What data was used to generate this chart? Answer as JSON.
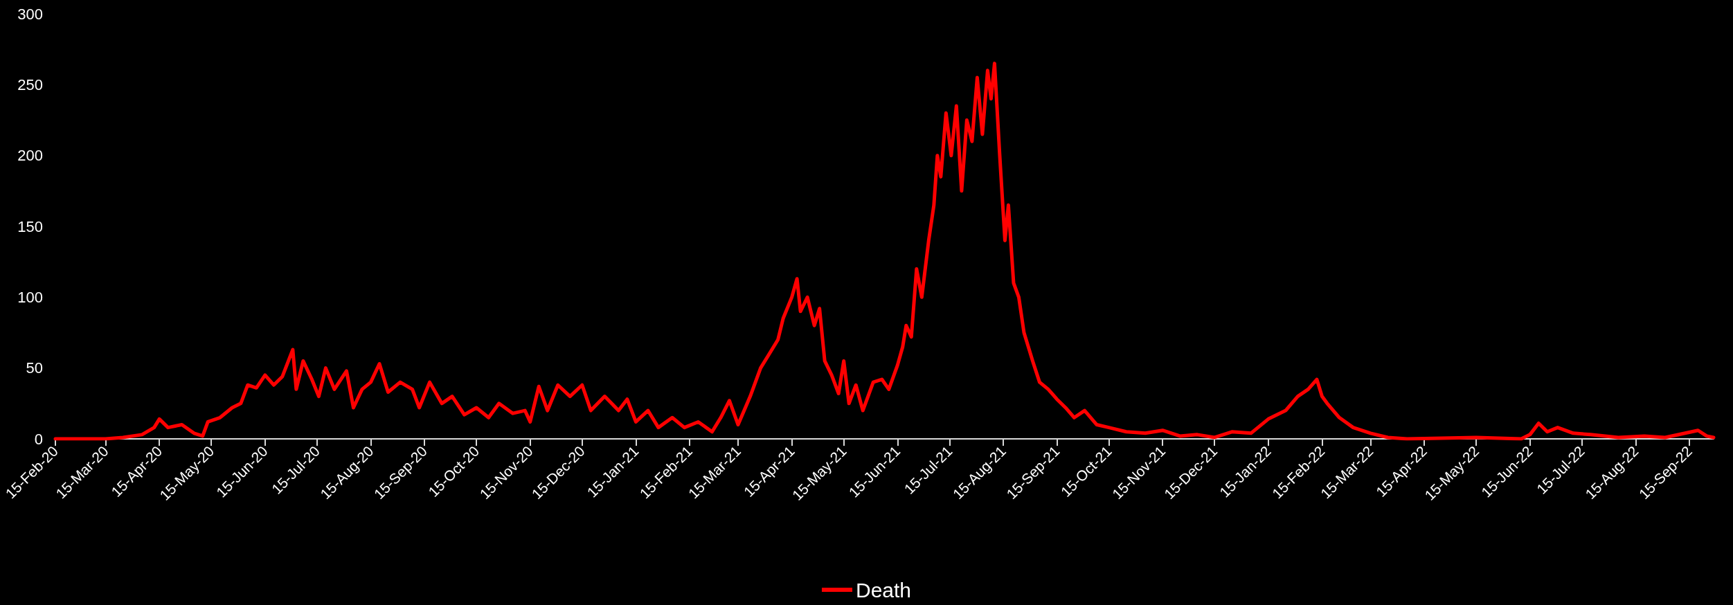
{
  "chart_data": {
    "type": "line",
    "legend": "bottom",
    "grid": false,
    "marker": "none",
    "line_style": "solid",
    "xlim": [
      "2020-02-15",
      "2022-09-29"
    ],
    "xticks": [
      {
        "value": "2020-02-15",
        "label": "15-Feb-20"
      },
      {
        "value": "2020-03-15",
        "label": "15-Mar-20"
      },
      {
        "value": "2020-04-15",
        "label": "15-Apr-20"
      },
      {
        "value": "2020-05-15",
        "label": "15-May-20"
      },
      {
        "value": "2020-06-15",
        "label": "15-Jun-20"
      },
      {
        "value": "2020-07-15",
        "label": "15-Jul-20"
      },
      {
        "value": "2020-08-15",
        "label": "15-Aug-20"
      },
      {
        "value": "2020-09-15",
        "label": "15-Sep-20"
      },
      {
        "value": "2020-10-15",
        "label": "15-Oct-20"
      },
      {
        "value": "2020-11-15",
        "label": "15-Nov-20"
      },
      {
        "value": "2020-12-15",
        "label": "15-Dec-20"
      },
      {
        "value": "2021-01-15",
        "label": "15-Jan-21"
      },
      {
        "value": "2021-02-15",
        "label": "15-Feb-21"
      },
      {
        "value": "2021-03-15",
        "label": "15-Mar-21"
      },
      {
        "value": "2021-04-15",
        "label": "15-Apr-21"
      },
      {
        "value": "2021-05-15",
        "label": "15-May-21"
      },
      {
        "value": "2021-06-15",
        "label": "15-Jun-21"
      },
      {
        "value": "2021-07-15",
        "label": "15-Jul-21"
      },
      {
        "value": "2021-08-15",
        "label": "15-Aug-21"
      },
      {
        "value": "2021-09-15",
        "label": "15-Sep-21"
      },
      {
        "value": "2021-10-15",
        "label": "15-Oct-21"
      },
      {
        "value": "2021-11-15",
        "label": "15-Nov-21"
      },
      {
        "value": "2021-12-15",
        "label": "15-Dec-21"
      },
      {
        "value": "2022-01-15",
        "label": "15-Jan-22"
      },
      {
        "value": "2022-02-15",
        "label": "15-Feb-22"
      },
      {
        "value": "2022-03-15",
        "label": "15-Mar-22"
      },
      {
        "value": "2022-04-15",
        "label": "15-Apr-22"
      },
      {
        "value": "2022-05-15",
        "label": "15-May-22"
      },
      {
        "value": "2022-06-15",
        "label": "15-Jun-22"
      },
      {
        "value": "2022-07-15",
        "label": "15-Jul-22"
      },
      {
        "value": "2022-08-15",
        "label": "15-Aug-22"
      },
      {
        "value": "2022-09-15",
        "label": "15-Sep-22"
      }
    ],
    "ylim": [
      0,
      300
    ],
    "yticks": [
      0,
      50,
      100,
      150,
      200,
      250,
      300
    ],
    "x": [
      "2020-02-15",
      "2020-03-15",
      "2020-03-25",
      "2020-04-05",
      "2020-04-12",
      "2020-04-15",
      "2020-04-20",
      "2020-04-28",
      "2020-05-05",
      "2020-05-10",
      "2020-05-13",
      "2020-05-20",
      "2020-05-27",
      "2020-06-01",
      "2020-06-05",
      "2020-06-10",
      "2020-06-15",
      "2020-06-20",
      "2020-06-25",
      "2020-07-01",
      "2020-07-03",
      "2020-07-07",
      "2020-07-12",
      "2020-07-16",
      "2020-07-20",
      "2020-07-25",
      "2020-08-01",
      "2020-08-05",
      "2020-08-10",
      "2020-08-15",
      "2020-08-20",
      "2020-08-25",
      "2020-09-01",
      "2020-09-08",
      "2020-09-12",
      "2020-09-18",
      "2020-09-25",
      "2020-10-01",
      "2020-10-08",
      "2020-10-15",
      "2020-10-22",
      "2020-10-28",
      "2020-11-05",
      "2020-11-12",
      "2020-11-15",
      "2020-11-20",
      "2020-11-25",
      "2020-12-01",
      "2020-12-08",
      "2020-12-15",
      "2020-12-20",
      "2020-12-28",
      "2021-01-05",
      "2021-01-10",
      "2021-01-15",
      "2021-01-22",
      "2021-01-28",
      "2021-02-05",
      "2021-02-12",
      "2021-02-20",
      "2021-02-28",
      "2021-03-05",
      "2021-03-10",
      "2021-03-15",
      "2021-03-22",
      "2021-03-28",
      "2021-04-02",
      "2021-04-07",
      "2021-04-10",
      "2021-04-15",
      "2021-04-18",
      "2021-04-20",
      "2021-04-24",
      "2021-04-28",
      "2021-05-01",
      "2021-05-04",
      "2021-05-08",
      "2021-05-12",
      "2021-05-15",
      "2021-05-18",
      "2021-05-22",
      "2021-05-26",
      "2021-06-01",
      "2021-06-06",
      "2021-06-10",
      "2021-06-15",
      "2021-06-18",
      "2021-06-20",
      "2021-06-23",
      "2021-06-26",
      "2021-06-29",
      "2021-07-03",
      "2021-07-06",
      "2021-07-08",
      "2021-07-10",
      "2021-07-13",
      "2021-07-16",
      "2021-07-19",
      "2021-07-22",
      "2021-07-25",
      "2021-07-28",
      "2021-07-31",
      "2021-08-03",
      "2021-08-06",
      "2021-08-08",
      "2021-08-10",
      "2021-08-13",
      "2021-08-16",
      "2021-08-18",
      "2021-08-21",
      "2021-08-24",
      "2021-08-27",
      "2021-09-01",
      "2021-09-05",
      "2021-09-10",
      "2021-09-15",
      "2021-09-20",
      "2021-09-25",
      "2021-10-01",
      "2021-10-08",
      "2021-10-15",
      "2021-10-25",
      "2021-11-05",
      "2021-11-15",
      "2021-11-25",
      "2021-12-05",
      "2021-12-15",
      "2021-12-25",
      "2022-01-05",
      "2022-01-15",
      "2022-01-25",
      "2022-02-01",
      "2022-02-07",
      "2022-02-12",
      "2022-02-15",
      "2022-02-18",
      "2022-02-25",
      "2022-03-05",
      "2022-03-15",
      "2022-03-25",
      "2022-04-05",
      "2022-05-15",
      "2022-06-10",
      "2022-06-15",
      "2022-06-20",
      "2022-06-25",
      "2022-07-01",
      "2022-07-10",
      "2022-07-20",
      "2022-08-05",
      "2022-08-20",
      "2022-09-01",
      "2022-09-20",
      "2022-09-25",
      "2022-09-29"
    ],
    "series": [
      {
        "name": "Death",
        "color": "#ff0000",
        "values": [
          0,
          0,
          1,
          3,
          8,
          14,
          8,
          10,
          4,
          2,
          12,
          15,
          22,
          25,
          38,
          36,
          45,
          38,
          44,
          63,
          35,
          55,
          42,
          30,
          50,
          35,
          48,
          22,
          35,
          40,
          53,
          33,
          40,
          35,
          22,
          40,
          25,
          30,
          17,
          22,
          15,
          25,
          18,
          20,
          12,
          37,
          20,
          38,
          30,
          38,
          20,
          30,
          20,
          28,
          12,
          20,
          8,
          15,
          8,
          12,
          5,
          15,
          27,
          10,
          30,
          50,
          60,
          70,
          85,
          100,
          113,
          90,
          100,
          80,
          92,
          55,
          45,
          32,
          55,
          25,
          38,
          20,
          40,
          42,
          35,
          52,
          65,
          80,
          72,
          120,
          100,
          140,
          165,
          200,
          185,
          230,
          200,
          235,
          175,
          225,
          210,
          255,
          215,
          260,
          240,
          265,
          200,
          140,
          165,
          110,
          100,
          75,
          55,
          40,
          35,
          28,
          22,
          15,
          20,
          10,
          8,
          5,
          4,
          6,
          2,
          3,
          1,
          5,
          4,
          14,
          20,
          30,
          35,
          42,
          30,
          25,
          15,
          8,
          4,
          1,
          0,
          1,
          0,
          3,
          11,
          5,
          8,
          4,
          3,
          1,
          2,
          1,
          6,
          2,
          1
        ]
      }
    ]
  }
}
